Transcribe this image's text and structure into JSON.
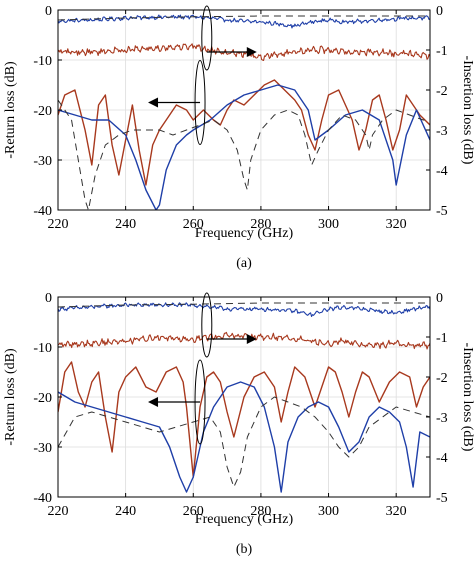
{
  "chart_data": [
    {
      "type": "line",
      "caption": "(a)",
      "xlabel": "Frequency (GHz)",
      "ylabel_left": "-Return loss (dB)",
      "ylabel_right": "-Insertion loss (dB)",
      "xlim": [
        220,
        330
      ],
      "ylim_left": [
        -40,
        0
      ],
      "ylim_right": [
        -5,
        0
      ],
      "xticks": [
        "220",
        "240",
        "260",
        "280",
        "300",
        "320"
      ],
      "yticks_left": [
        "0",
        "-10",
        "-20",
        "-30",
        "-40"
      ],
      "yticks_right": [
        "0",
        "-1",
        "-2",
        "-3",
        "-4",
        "-5"
      ],
      "grid": true,
      "colors": {
        "blue": "#1f3fa8",
        "red": "#a8391e",
        "dashed": "#333333"
      },
      "series": [
        {
          "axis": "right",
          "color": "blue",
          "style": "solid",
          "noisy": true,
          "x": [
            220,
            230,
            240,
            250,
            260,
            265,
            270,
            275,
            280,
            285,
            290,
            295,
            300,
            305,
            310,
            315,
            320,
            325,
            330
          ],
          "y": [
            -0.28,
            -0.25,
            -0.2,
            -0.18,
            -0.17,
            -0.2,
            -0.25,
            -0.28,
            -0.3,
            -0.35,
            -0.4,
            -0.3,
            -0.25,
            -0.3,
            -0.28,
            -0.25,
            -0.22,
            -0.2,
            -0.2
          ]
        },
        {
          "axis": "right",
          "color": "dashed",
          "style": "dashed",
          "x": [
            220,
            240,
            260,
            280,
            300,
            320,
            330
          ],
          "y": [
            -0.25,
            -0.2,
            -0.17,
            -0.15,
            -0.15,
            -0.15,
            -0.15
          ]
        },
        {
          "axis": "right",
          "color": "red",
          "style": "solid",
          "noisy": true,
          "x": [
            220,
            230,
            240,
            250,
            260,
            265,
            270,
            275,
            280,
            285,
            290,
            295,
            300,
            305,
            310,
            315,
            320,
            325,
            330
          ],
          "y": [
            -1.05,
            -1.05,
            -1.0,
            -0.95,
            -0.9,
            -1.0,
            -1.05,
            -1.1,
            -1.2,
            -1.1,
            -1.05,
            -1.0,
            -1.0,
            -1.05,
            -1.05,
            -1.05,
            -1.1,
            -1.1,
            -1.15
          ]
        },
        {
          "axis": "left",
          "color": "red",
          "style": "solid",
          "x": [
            220,
            222,
            225,
            228,
            230,
            232,
            234,
            236,
            238,
            240,
            242,
            244,
            246,
            248,
            250,
            252,
            255,
            258,
            260,
            263,
            266,
            268,
            270,
            272,
            275,
            278,
            281,
            284,
            287,
            290,
            292,
            294,
            296,
            298,
            300,
            303,
            305,
            307,
            309,
            311,
            313,
            315,
            317,
            319,
            321,
            323,
            325,
            327,
            330
          ],
          "y": [
            -21,
            -17,
            -16,
            -24,
            -31,
            -19,
            -17,
            -27,
            -33,
            -26,
            -19,
            -28,
            -35,
            -27,
            -24,
            -22,
            -19,
            -20,
            -22,
            -20,
            -22,
            -23,
            -20,
            -18,
            -19,
            -17,
            -15,
            -14,
            -16,
            -18,
            -20,
            -25,
            -28,
            -22,
            -17,
            -16,
            -19,
            -22,
            -28,
            -24,
            -18,
            -17,
            -22,
            -28,
            -24,
            -17,
            -19,
            -21,
            -23
          ]
        },
        {
          "axis": "left",
          "color": "blue",
          "style": "solid",
          "x": [
            220,
            225,
            230,
            235,
            240,
            243,
            246,
            249,
            250,
            252,
            255,
            258,
            260,
            265,
            270,
            275,
            280,
            285,
            290,
            294,
            296,
            300,
            305,
            310,
            315,
            319,
            320,
            323,
            326,
            330
          ],
          "y": [
            -20,
            -21,
            -22,
            -22,
            -25,
            -30,
            -36,
            -40,
            -39,
            -32,
            -27,
            -25,
            -24,
            -22,
            -19,
            -17,
            -16,
            -15,
            -16,
            -20,
            -26,
            -24,
            -21,
            -20,
            -22,
            -30,
            -35,
            -25,
            -20,
            -26
          ]
        },
        {
          "axis": "left",
          "color": "dashed",
          "style": "dashed",
          "x": [
            220,
            224,
            226,
            228,
            229,
            231,
            234,
            238,
            242,
            246,
            250,
            254,
            258,
            262,
            266,
            270,
            273,
            275,
            276,
            277,
            280,
            284,
            288,
            291,
            293,
            295,
            297,
            300,
            304,
            308,
            311,
            312,
            313,
            316,
            320,
            324,
            328,
            330
          ],
          "y": [
            -18,
            -22,
            -30,
            -38,
            -40,
            -33,
            -27,
            -25,
            -24,
            -24,
            -24,
            -25,
            -24,
            -23,
            -22,
            -24,
            -28,
            -34,
            -36,
            -30,
            -24,
            -21,
            -20,
            -21,
            -25,
            -31,
            -28,
            -24,
            -21,
            -22,
            -25,
            -28,
            -25,
            -22,
            -20,
            -21,
            -22,
            -22
          ]
        }
      ],
      "annotations": {
        "arrow_left_at": [
          262,
          -18.5
        ],
        "arrow_right_at": [
          264,
          -0.7
        ]
      }
    },
    {
      "type": "line",
      "caption": "(b)",
      "xlabel": "Frequency (GHz)",
      "ylabel_left": "-Return loss (dB)",
      "ylabel_right": "-Insertion loss (dB)",
      "xlim": [
        220,
        330
      ],
      "ylim_left": [
        -40,
        0
      ],
      "ylim_right": [
        -5,
        0
      ],
      "xticks": [
        "220",
        "240",
        "260",
        "280",
        "300",
        "320"
      ],
      "yticks_left": [
        "0",
        "-10",
        "-20",
        "-30",
        "-40"
      ],
      "yticks_right": [
        "0",
        "-1",
        "-2",
        "-3",
        "-4",
        "-5"
      ],
      "grid": true,
      "colors": {
        "blue": "#1f3fa8",
        "red": "#a8391e",
        "dashed": "#333333"
      },
      "series": [
        {
          "axis": "right",
          "color": "blue",
          "style": "solid",
          "noisy": true,
          "x": [
            220,
            230,
            240,
            250,
            260,
            265,
            270,
            275,
            280,
            285,
            290,
            295,
            300,
            305,
            310,
            315,
            320,
            325,
            330
          ],
          "y": [
            -0.3,
            -0.25,
            -0.2,
            -0.2,
            -0.2,
            -0.25,
            -0.3,
            -0.3,
            -0.3,
            -0.32,
            -0.35,
            -0.45,
            -0.3,
            -0.25,
            -0.3,
            -0.35,
            -0.4,
            -0.3,
            -0.25
          ]
        },
        {
          "axis": "right",
          "color": "dashed",
          "style": "dashed",
          "x": [
            220,
            240,
            260,
            280,
            300,
            320,
            330
          ],
          "y": [
            -0.25,
            -0.2,
            -0.18,
            -0.15,
            -0.15,
            -0.15,
            -0.15
          ]
        },
        {
          "axis": "right",
          "color": "red",
          "style": "solid",
          "noisy": true,
          "x": [
            220,
            230,
            240,
            250,
            260,
            265,
            270,
            275,
            280,
            285,
            290,
            295,
            300,
            305,
            310,
            315,
            320,
            325,
            330
          ],
          "y": [
            -1.2,
            -1.15,
            -1.1,
            -1.0,
            -1.05,
            -1.0,
            -0.95,
            -1.0,
            -1.0,
            -1.0,
            -1.05,
            -1.1,
            -1.15,
            -1.1,
            -1.2,
            -1.2,
            -1.15,
            -1.2,
            -1.2
          ]
        },
        {
          "axis": "left",
          "color": "red",
          "style": "solid",
          "x": [
            220,
            222,
            224,
            226,
            228,
            230,
            232,
            234,
            236,
            238,
            240,
            243,
            246,
            249,
            252,
            255,
            257,
            258,
            260,
            262,
            264,
            266,
            268,
            270,
            272,
            275,
            278,
            281,
            284,
            286,
            288,
            290,
            293,
            296,
            298,
            300,
            302,
            304,
            306,
            308,
            310,
            312,
            315,
            318,
            321,
            324,
            326,
            328,
            330
          ],
          "y": [
            -23,
            -15,
            -13,
            -19,
            -22,
            -17,
            -15,
            -24,
            -31,
            -19,
            -16,
            -14,
            -18,
            -19,
            -15,
            -14,
            -17,
            -22,
            -36,
            -22,
            -16,
            -15,
            -17,
            -23,
            -28,
            -20,
            -16,
            -15,
            -18,
            -25,
            -19,
            -14,
            -16,
            -22,
            -18,
            -14,
            -15,
            -19,
            -24,
            -19,
            -15,
            -16,
            -21,
            -17,
            -15,
            -16,
            -22,
            -18,
            -16
          ]
        },
        {
          "axis": "left",
          "color": "blue",
          "style": "solid",
          "x": [
            220,
            225,
            230,
            235,
            240,
            245,
            250,
            253,
            256,
            258,
            260,
            263,
            266,
            270,
            274,
            278,
            281,
            284,
            286,
            288,
            291,
            294,
            297,
            300,
            303,
            306,
            309,
            312,
            315,
            318,
            321,
            323,
            325,
            327,
            330
          ],
          "y": [
            -19,
            -21,
            -22,
            -23,
            -24,
            -25,
            -26,
            -30,
            -36,
            -39,
            -36,
            -27,
            -22,
            -18,
            -17,
            -18,
            -22,
            -30,
            -39,
            -29,
            -24,
            -22,
            -21,
            -22,
            -26,
            -31,
            -29,
            -24,
            -22,
            -23,
            -25,
            -30,
            -38,
            -27,
            -28
          ]
        },
        {
          "axis": "left",
          "color": "dashed",
          "style": "dashed",
          "x": [
            220,
            225,
            230,
            235,
            240,
            245,
            250,
            255,
            260,
            265,
            268,
            270,
            272,
            274,
            276,
            280,
            284,
            288,
            292,
            296,
            300,
            303,
            306,
            309,
            312,
            316,
            320,
            325,
            330
          ],
          "y": [
            -30,
            -24,
            -23,
            -24,
            -25,
            -26,
            -27,
            -26,
            -25,
            -24,
            -27,
            -34,
            -38,
            -35,
            -28,
            -22,
            -20,
            -21,
            -22,
            -24,
            -27,
            -30,
            -32,
            -30,
            -26,
            -24,
            -22,
            -23,
            -24
          ]
        }
      ],
      "annotations": {
        "arrow_left_at": [
          262,
          -21
        ],
        "arrow_right_at": [
          264,
          -0.7
        ]
      }
    }
  ]
}
